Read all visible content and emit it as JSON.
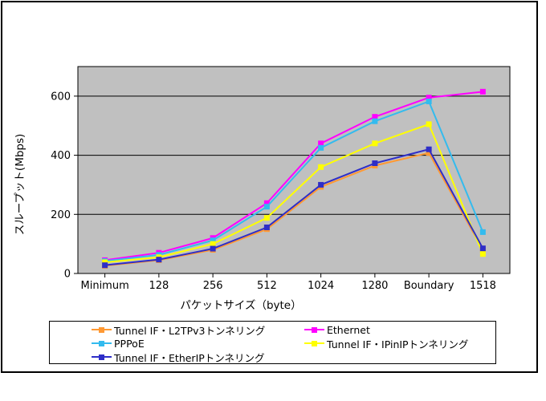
{
  "chart_data": {
    "type": "line",
    "title": "",
    "xlabel": "パケットサイズ（byte）",
    "ylabel": "スループット(Mbps)",
    "categories": [
      "Minimum",
      "128",
      "256",
      "512",
      "1024",
      "1280",
      "Boundary",
      "1518"
    ],
    "ylim": [
      0,
      700
    ],
    "yticks": [
      0,
      200,
      400,
      600
    ],
    "grid": true,
    "plot_bg_color": "#c0c0c0",
    "gridline_color": "#000000",
    "legend_position": "bottom",
    "series": [
      {
        "name": "Tunnel IF・L2TPv3トンネリング",
        "color": "#ff9933",
        "marker": "square",
        "values": [
          26,
          45,
          80,
          150,
          293,
          365,
          408,
          80
        ]
      },
      {
        "name": "Ethernet",
        "color": "#ff00ff",
        "marker": "square",
        "values": [
          45,
          70,
          120,
          238,
          440,
          530,
          595,
          615
        ]
      },
      {
        "name": "PPPoE",
        "color": "#33bbee",
        "marker": "square",
        "values": [
          42,
          63,
          112,
          226,
          425,
          515,
          582,
          140
        ]
      },
      {
        "name": "Tunnel IF・IPinIPトンネリング",
        "color": "#ffff00",
        "marker": "square",
        "values": [
          38,
          55,
          100,
          188,
          360,
          440,
          505,
          66
        ]
      },
      {
        "name": "Tunnel IF・EtherIPトンネリング",
        "color": "#2e2ec8",
        "marker": "square",
        "values": [
          28,
          47,
          84,
          156,
          300,
          373,
          420,
          85
        ]
      }
    ],
    "legend_layout": [
      [
        0,
        1
      ],
      [
        2,
        3
      ],
      [
        4
      ]
    ]
  }
}
